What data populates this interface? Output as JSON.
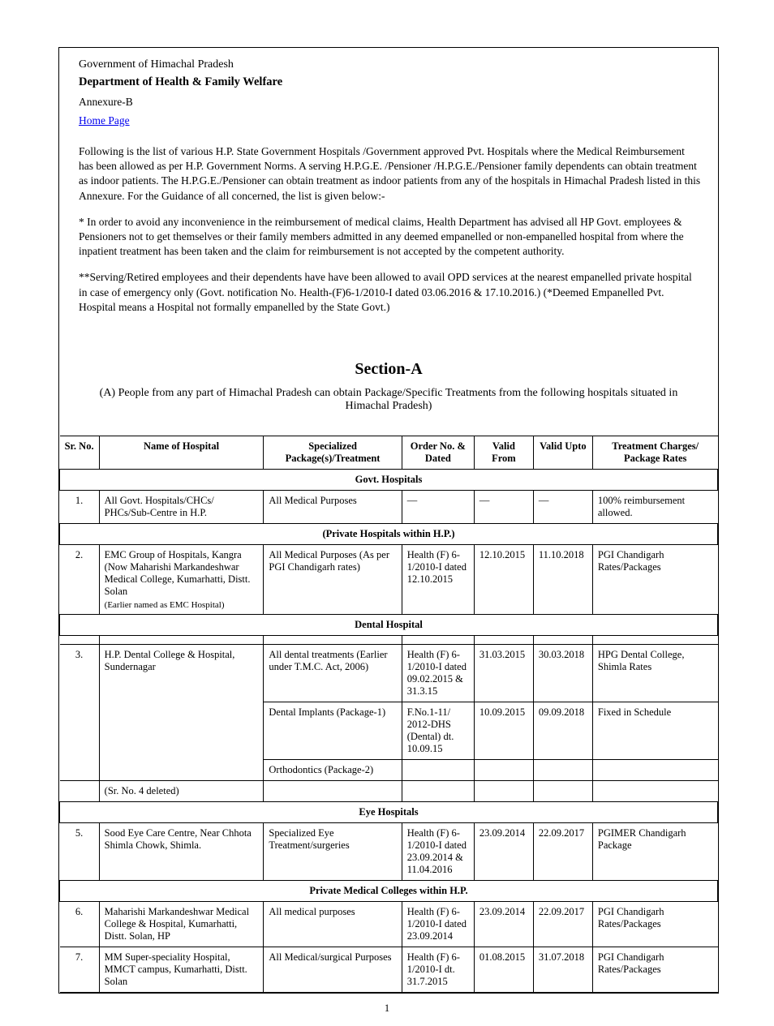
{
  "header": {
    "gov": "Government of Himachal Pradesh",
    "dept": "Department of Health & Family Welfare",
    "annexure": "Annexure-B",
    "linkText": "Home Page",
    "para1": "Following is the list of various H.P. State Government Hospitals /Government approved Pvt. Hospitals where the Medical Reimbursement has been allowed as per H.P. Government Norms. A serving H.P.G.E. /Pensioner /H.P.G.E./Pensioner family dependents can obtain treatment as indoor patients. The H.P.G.E./Pensioner can obtain treatment as indoor patients from any of the hospitals in Himachal Pradesh listed in this Annexure. For the Guidance of all concerned, the list is given below:-",
    "para2": "* In order to avoid any inconvenience in the reimbursement of medical claims, Health Department has advised all HP Govt. employees & Pensioners not to get themselves or their family members admitted in any deemed empanelled or non-empanelled hospital from where the inpatient treatment has been taken and the claim for reimbursement is not accepted by the competent authority.",
    "para3": "**Serving/Retired employees and their dependents have have been allowed to avail OPD services at the nearest empanelled private hospital in case of emergency only (Govt. notification No. Health-(F)6-1/2010-I dated 03.06.2016 & 17.10.2016.)\n(*Deemed Empanelled Pvt. Hospital means a Hospital not formally empanelled by the State Govt.) "
  },
  "section": {
    "title": "Section-A",
    "subtitle": "(A) People from any part of Himachal Pradesh can obtain Package/Specific Treatments from the following hospitals situated in Himachal Pradesh)"
  },
  "table": {
    "columns": [
      "Sr. No.",
      "Name of Hospital",
      "Specialized Package(s)/Treatment",
      "Order No. & Dated",
      "Valid From",
      "Valid Upto",
      "Treatment Charges/ Package Rates"
    ],
    "colWidths": [
      "6%",
      "25%",
      "21%",
      "11%",
      "9%",
      "9%",
      "19%"
    ],
    "groups": [
      {
        "heading": "Govt. Hospitals",
        "rows": [
          {
            "cells": [
              "1.",
              "All Govt. Hospitals/CHCs/ PHCs/Sub-Centre in H.P.",
              "All Medical Purposes",
              "—",
              "—",
              "—",
              "100% reimbursement allowed."
            ]
          }
        ]
      },
      {
        "heading": "(Private Hospitals within H.P.)",
        "rows": [
          {
            "cells": [
              "2.",
              {
                "text": "EMC Group of Hospitals, Kangra (Now Maharishi\nMarkandeshwar Medical College, Kumarhatti, Distt. Solan",
                "subText": "Earlier named as EMC Hospital"
              },
              "All Medical Purposes (As per PGI Chandigarh rates)",
              "Health (F) 6-1/2010-I dated 12.10.2015",
              "12.10.2015",
              "11.10.2018",
              "PGI Chandigarh Rates/Packages"
            ]
          }
        ]
      },
      {
        "heading": "Dental Hospital",
        "rows": [
          {
            "cells": [
              "",
              "",
              "",
              "",
              "",
              "",
              ""
            ]
          },
          {
            "sr": "3.",
            "name": "H.P. Dental College & Hospital, Sundernagar",
            "subRows": [
              {
                "cells": [
                  "All dental treatments (Earlier under T.M.C. Act, 2006)",
                  "Health (F) 6-1/2010-I dated 09.02.2015 & 31.3.15",
                  "31.03.2015",
                  "30.03.2018",
                  "HPG Dental College, Shimla Rates"
                ]
              },
              {
                "cells": [
                  "Dental Implants (Package-1)",
                  "F.No.1-11/ 2012-DHS (Dental) dt. 10.09.15",
                  "10.09.2015",
                  "09.09.2018",
                  "Fixed in Schedule"
                ]
              },
              {
                "cells": [
                  "Orthodontics (Package-2)",
                  "",
                  "",
                  "",
                  ""
                ]
              }
            ]
          },
          {
            "cells": [
              "",
              "(Sr. No. 4 deleted)",
              "",
              "",
              "",
              "",
              ""
            ]
          }
        ]
      },
      {
        "heading": "Eye Hospitals",
        "rows": [
          {
            "cells": [
              "5.",
              "Sood Eye Care Centre, Near Chhota Shimla Chowk, Shimla.",
              "Specialized Eye Treatment/surgeries",
              "Health (F) 6-1/2010-I dated 23.09.2014 & 11.04.2016",
              "23.09.2014",
              "22.09.2017",
              "PGIMER Chandigarh Package"
            ]
          }
        ]
      },
      {
        "heading": "Private Medical Colleges within H.P.",
        "rows": [
          {
            "cells": [
              "6.",
              "Maharishi Markandeshwar Medical College & Hospital, Kumarhatti, Distt. Solan, HP",
              "All medical purposes",
              "Health (F) 6-1/2010-I dated 23.09.2014",
              "23.09.2014",
              "22.09.2017",
              "PGI Chandigarh Rates/Packages"
            ]
          },
          {
            "cells": [
              "7.",
              "MM Super-speciality Hospital, MMCT campus, Kumarhatti, Distt. Solan",
              "All Medical/surgical Purposes",
              "Health (F) 6-1/2010-I dt. 31.7.2015",
              "01.08.2015",
              "31.07.2018",
              "PGI Chandigarh Rates/Packages"
            ]
          }
        ]
      }
    ]
  },
  "pageNumber": "1"
}
